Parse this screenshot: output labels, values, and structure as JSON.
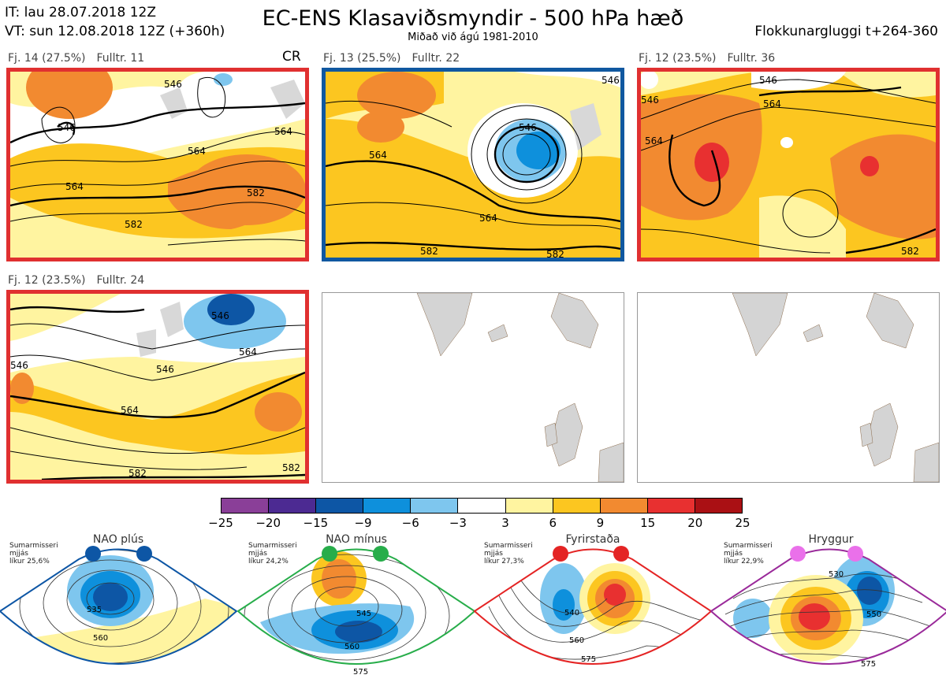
{
  "header": {
    "it_line": "IT: lau 28.07.2018 12Z",
    "vt_line": "VT: sun 12.08.2018 12Z  (+360h)",
    "title": "EC-ENS Klasaviðsmyndir - 500 hPa hæð",
    "subtitle": "Miðað við ágú 1981-2010",
    "window": "Flokkunargluggi t+264-360"
  },
  "panels": [
    {
      "fj": "Fj. 14 (27.5%)",
      "fulltr": "Fulltr. 11",
      "tag": "CR",
      "frame_color": "#e03030",
      "contour_labels": [
        "546",
        "564",
        "564",
        "582",
        "582",
        "546",
        "564"
      ]
    },
    {
      "fj": "Fj. 13 (25.5%)",
      "fulltr": "Fulltr. 22",
      "tag": "",
      "frame_color": "#1058a0",
      "contour_labels": [
        "564",
        "546",
        "564",
        "582",
        "582",
        "546"
      ]
    },
    {
      "fj": "Fj. 12 (23.5%)",
      "fulltr": "Fulltr. 36",
      "tag": "",
      "frame_color": "#e03030",
      "contour_labels": [
        "546",
        "564",
        "564",
        "582",
        "546"
      ]
    },
    {
      "fj": "Fj. 12 (23.5%)",
      "fulltr": "Fulltr. 24",
      "tag": "",
      "frame_color": "#e03030",
      "contour_labels": [
        "546",
        "564",
        "546",
        "564",
        "582",
        "582",
        "546"
      ]
    }
  ],
  "colorbar": {
    "labels": [
      "−25",
      "−20",
      "−15",
      "−9",
      "−6",
      "−3",
      "3",
      "6",
      "9",
      "15",
      "20",
      "25"
    ],
    "colors": [
      "#8a3f98",
      "#4c2a92",
      "#0d56a5",
      "#0e90dc",
      "#7ec6ee",
      "#ffffff",
      "#fff4a0",
      "#fcc620",
      "#f28a30",
      "#e83030",
      "#aa1014"
    ]
  },
  "regimes": [
    {
      "name": "NAO plús",
      "season": "Sumarmisseri",
      "mean": "mjjás",
      "prob": "líkur 25,6%",
      "color": "#0d56a5",
      "contour_labels": [
        "535",
        "560"
      ]
    },
    {
      "name": "NAO mínus",
      "season": "Sumarmisseri",
      "mean": "mjjás",
      "prob": "líkur 24,2%",
      "color": "#27ad4a",
      "contour_labels": [
        "545",
        "560",
        "575"
      ]
    },
    {
      "name": "Fyrirstaða",
      "season": "Sumarmisseri",
      "mean": "mjjás",
      "prob": "líkur 27,3%",
      "color": "#e42424",
      "contour_labels": [
        "540",
        "560",
        "575"
      ]
    },
    {
      "name": "Hryggur",
      "season": "Sumarmisseri",
      "mean": "mjjás",
      "prob": "líkur 22,9%",
      "color": "#9a2a9a",
      "contour_labels": [
        "530",
        "550",
        "575"
      ]
    }
  ]
}
